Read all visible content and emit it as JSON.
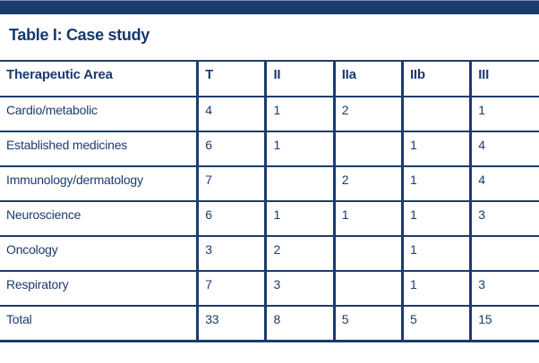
{
  "page": {
    "title": "Table I: Case study"
  },
  "colors": {
    "navy": "#1b3b6f",
    "background": "#ffffff"
  },
  "chart_data": {
    "type": "table",
    "title": "Table I: Case study",
    "columns": [
      "Therapeutic Area",
      "T",
      "II",
      "IIa",
      "IIb",
      "III"
    ],
    "rows": [
      {
        "label": "Cardio/metabolic",
        "values": [
          "4",
          "1",
          "2",
          "",
          "1"
        ]
      },
      {
        "label": "Established medicines",
        "values": [
          "6",
          "1",
          "",
          "1",
          "4"
        ]
      },
      {
        "label": "Immunology/dermatology",
        "values": [
          "7",
          "",
          "2",
          "1",
          "4"
        ]
      },
      {
        "label": "Neuroscience",
        "values": [
          "6",
          "1",
          "1",
          "1",
          "3"
        ]
      },
      {
        "label": "Oncology",
        "values": [
          "3",
          "2",
          "",
          "1",
          ""
        ]
      },
      {
        "label": "Respiratory",
        "values": [
          "7",
          "3",
          "",
          "1",
          "3"
        ]
      },
      {
        "label": "Total",
        "values": [
          "33",
          "8",
          "5",
          "5",
          "15"
        ]
      }
    ]
  }
}
